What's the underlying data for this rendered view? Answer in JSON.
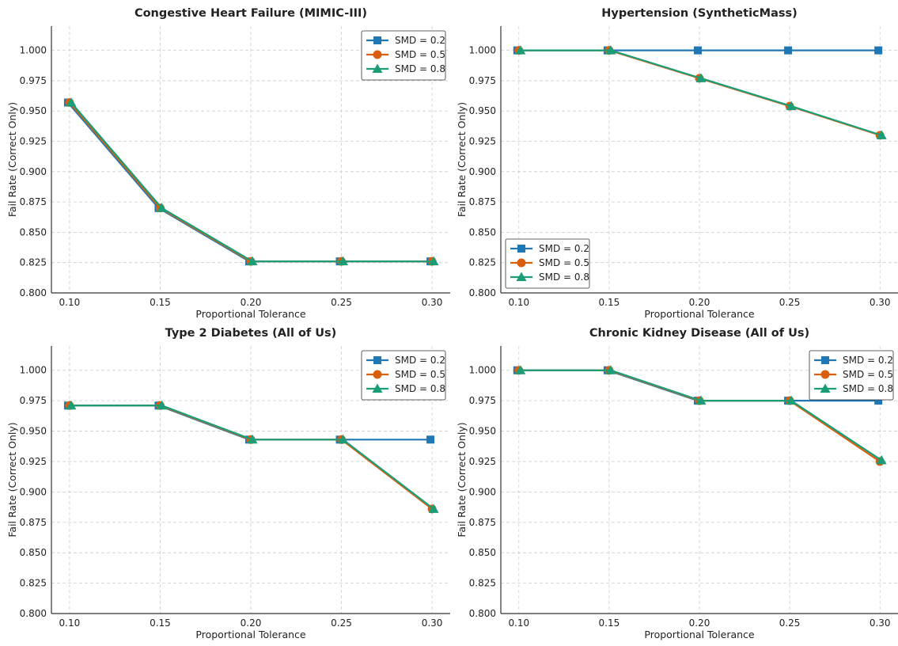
{
  "figure": {
    "colors": {
      "smd_0_2": "#1f77b4",
      "smd_0_5": "#d95f0e",
      "smd_0_8": "#1b9e77",
      "grid": "#cccccc",
      "axis": "#333333"
    },
    "markers": {
      "smd_0_2": "square",
      "smd_0_5": "circle",
      "smd_0_8": "triangle"
    }
  },
  "chart_data": [
    {
      "type": "line",
      "title": "Congestive Heart Failure (MIMIC-III)",
      "xlabel": "Proportional Tolerance",
      "ylabel": "Fail Rate (Correct Only)",
      "x": [
        0.1,
        0.15,
        0.2,
        0.25,
        0.3
      ],
      "x_tick_labels": [
        "0.10",
        "0.15",
        "0.20",
        "0.25",
        "0.30"
      ],
      "ylim": [
        0.8,
        1.02
      ],
      "y_ticks": [
        0.8,
        0.825,
        0.85,
        0.875,
        0.9,
        0.925,
        0.95,
        0.975,
        1.0
      ],
      "y_tick_labels": [
        "0.800",
        "0.825",
        "0.850",
        "0.875",
        "0.900",
        "0.925",
        "0.950",
        "0.975",
        "1.000"
      ],
      "grid": true,
      "legend_position": "top-right",
      "series": [
        {
          "name": "SMD = 0.2",
          "values": [
            0.957,
            0.87,
            0.826,
            0.826,
            0.826
          ]
        },
        {
          "name": "SMD = 0.5",
          "values": [
            0.957,
            0.87,
            0.826,
            0.826,
            0.826
          ]
        },
        {
          "name": "SMD = 0.8",
          "values": [
            0.957,
            0.87,
            0.826,
            0.826,
            0.826
          ]
        }
      ]
    },
    {
      "type": "line",
      "title": "Hypertension (SyntheticMass)",
      "xlabel": "Proportional Tolerance",
      "ylabel": "Fail Rate (Correct Only)",
      "x": [
        0.1,
        0.15,
        0.2,
        0.25,
        0.3
      ],
      "x_tick_labels": [
        "0.10",
        "0.15",
        "0.20",
        "0.25",
        "0.30"
      ],
      "ylim": [
        0.8,
        1.02
      ],
      "y_ticks": [
        0.8,
        0.825,
        0.85,
        0.875,
        0.9,
        0.925,
        0.95,
        0.975,
        1.0
      ],
      "y_tick_labels": [
        "0.800",
        "0.825",
        "0.850",
        "0.875",
        "0.900",
        "0.925",
        "0.950",
        "0.975",
        "1.000"
      ],
      "grid": true,
      "legend_position": "bottom-left",
      "series": [
        {
          "name": "SMD = 0.2",
          "values": [
            1.0,
            1.0,
            1.0,
            1.0,
            1.0
          ]
        },
        {
          "name": "SMD = 0.5",
          "values": [
            1.0,
            1.0,
            0.977,
            0.954,
            0.93
          ]
        },
        {
          "name": "SMD = 0.8",
          "values": [
            1.0,
            1.0,
            0.977,
            0.954,
            0.93
          ]
        }
      ]
    },
    {
      "type": "line",
      "title": "Type 2 Diabetes (All of Us)",
      "xlabel": "Proportional Tolerance",
      "ylabel": "Fail Rate (Correct Only)",
      "x": [
        0.1,
        0.15,
        0.2,
        0.25,
        0.3
      ],
      "x_tick_labels": [
        "0.10",
        "0.15",
        "0.20",
        "0.25",
        "0.30"
      ],
      "ylim": [
        0.8,
        1.02
      ],
      "y_ticks": [
        0.8,
        0.825,
        0.85,
        0.875,
        0.9,
        0.925,
        0.95,
        0.975,
        1.0
      ],
      "y_tick_labels": [
        "0.800",
        "0.825",
        "0.850",
        "0.875",
        "0.900",
        "0.925",
        "0.950",
        "0.975",
        "1.000"
      ],
      "grid": true,
      "legend_position": "top-right",
      "series": [
        {
          "name": "SMD = 0.2",
          "values": [
            0.971,
            0.971,
            0.943,
            0.943,
            0.943
          ]
        },
        {
          "name": "SMD = 0.5",
          "values": [
            0.971,
            0.971,
            0.943,
            0.943,
            0.886
          ]
        },
        {
          "name": "SMD = 0.8",
          "values": [
            0.971,
            0.971,
            0.943,
            0.943,
            0.886
          ]
        }
      ]
    },
    {
      "type": "line",
      "title": "Chronic Kidney Disease (All of Us)",
      "xlabel": "Proportional Tolerance",
      "ylabel": "Fail Rate (Correct Only)",
      "x": [
        0.1,
        0.15,
        0.2,
        0.25,
        0.3
      ],
      "x_tick_labels": [
        "0.10",
        "0.15",
        "0.20",
        "0.25",
        "0.30"
      ],
      "ylim": [
        0.8,
        1.02
      ],
      "y_ticks": [
        0.8,
        0.825,
        0.85,
        0.875,
        0.9,
        0.925,
        0.95,
        0.975,
        1.0
      ],
      "y_tick_labels": [
        "0.800",
        "0.825",
        "0.850",
        "0.875",
        "0.900",
        "0.925",
        "0.950",
        "0.975",
        "1.000"
      ],
      "grid": true,
      "legend_position": "top-right",
      "series": [
        {
          "name": "SMD = 0.2",
          "values": [
            1.0,
            1.0,
            0.975,
            0.975,
            0.975
          ]
        },
        {
          "name": "SMD = 0.5",
          "values": [
            1.0,
            1.0,
            0.975,
            0.975,
            0.925
          ]
        },
        {
          "name": "SMD = 0.8",
          "values": [
            1.0,
            1.0,
            0.975,
            0.975,
            0.926
          ]
        }
      ]
    }
  ]
}
